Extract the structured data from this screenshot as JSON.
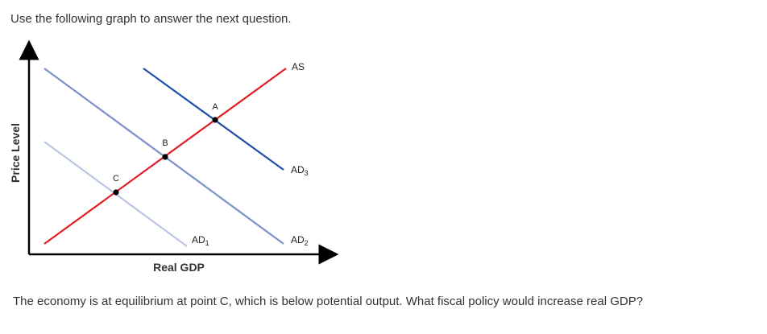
{
  "intro_text": "Use the following graph to answer the next question.",
  "question_text": "The economy is at equilibrium at point C, which is below potential output. What fiscal policy would increase real GDP?",
  "graph": {
    "y_axis_label": "Price Level",
    "x_axis_label": "Real GDP",
    "curves": {
      "as": {
        "label": "AS",
        "color": "#e31b23"
      },
      "ad1": {
        "label": "AD",
        "subscript": "1",
        "color": "#b9c6e3"
      },
      "ad2": {
        "label": "AD",
        "subscript": "2",
        "color": "#7b8fc9"
      },
      "ad3": {
        "label": "AD",
        "subscript": "3",
        "color": "#1f4fa8"
      }
    },
    "points": {
      "a": "A",
      "b": "B",
      "c": "C"
    }
  }
}
